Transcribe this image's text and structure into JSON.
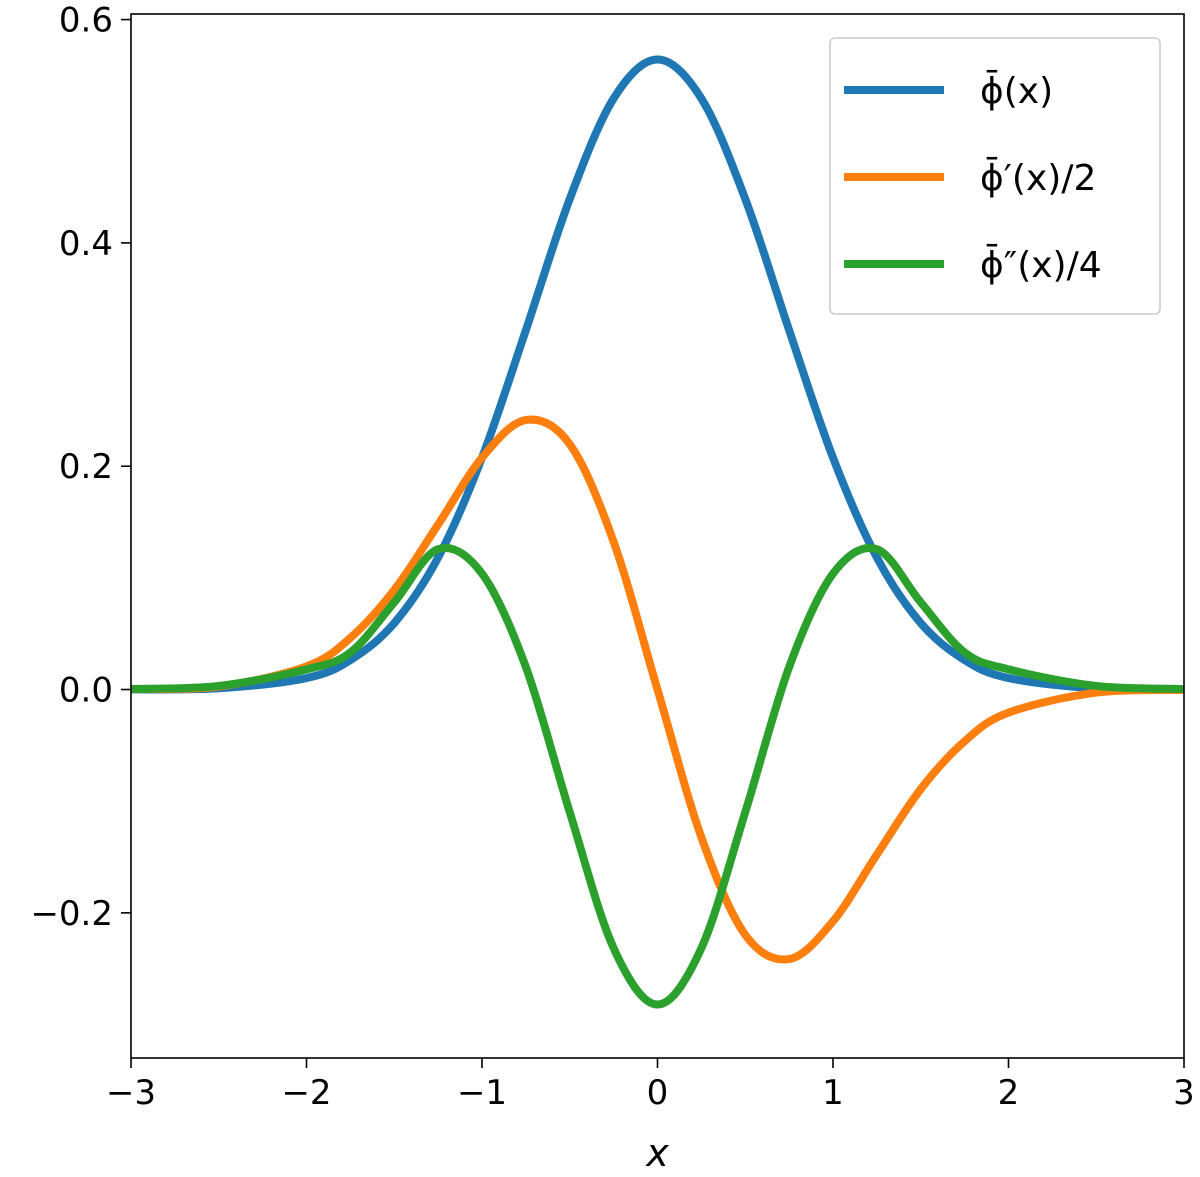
{
  "chart_data": {
    "type": "line",
    "title": "",
    "xlabel": "x",
    "ylabel": "",
    "xlim": [
      -3,
      3
    ],
    "ylim": [
      -0.33,
      0.605
    ],
    "grid": false,
    "legend_placement": "top-right",
    "x_ticks": [
      -3,
      -2,
      -1,
      0,
      1,
      2,
      3
    ],
    "x_tick_labels": [
      "−3",
      "−2",
      "−1",
      "0",
      "1",
      "2",
      "3"
    ],
    "y_ticks": [
      -0.2,
      0.0,
      0.2,
      0.4,
      0.6
    ],
    "y_tick_labels": [
      "−0.2",
      "0.0",
      "0.2",
      "0.4",
      "0.6"
    ],
    "x": [
      -3.0,
      -2.5,
      -2.0,
      -1.75,
      -1.5,
      -1.25,
      -1.0,
      -0.75,
      -0.5,
      -0.25,
      0.0,
      0.25,
      0.5,
      0.75,
      1.0,
      1.25,
      1.5,
      1.75,
      2.0,
      2.5,
      3.0
    ],
    "series": [
      {
        "name": "ϕ̄(x)",
        "color": "#1f77b4",
        "values": [
          0.0001,
          0.0011,
          0.0103,
          0.0264,
          0.0595,
          0.1182,
          0.2076,
          0.3219,
          0.4394,
          0.5293,
          0.5642,
          0.5293,
          0.4394,
          0.3219,
          0.2076,
          0.1182,
          0.0595,
          0.0264,
          0.0103,
          0.0011,
          0.0001
        ]
      },
      {
        "name": "ϕ̄′(x)/2",
        "color": "#ff7f0e",
        "values": [
          0.0004,
          0.0027,
          0.0207,
          0.0463,
          0.0892,
          0.1478,
          0.2076,
          0.2414,
          0.2197,
          0.1323,
          0.0,
          -0.1323,
          -0.2197,
          -0.2414,
          -0.2076,
          -0.1478,
          -0.0892,
          -0.0463,
          -0.0207,
          -0.0027,
          -0.0004
        ]
      },
      {
        "name": "ϕ̄″(x)/4",
        "color": "#2ca02c",
        "values": [
          0.0005,
          0.0032,
          0.0181,
          0.0332,
          0.0781,
          0.1257,
          0.1038,
          0.0201,
          -0.1098,
          -0.2316,
          -0.2821,
          -0.2316,
          -0.1098,
          0.0201,
          0.1038,
          0.1257,
          0.0781,
          0.0332,
          0.0181,
          0.0032,
          0.0005
        ]
      }
    ]
  }
}
